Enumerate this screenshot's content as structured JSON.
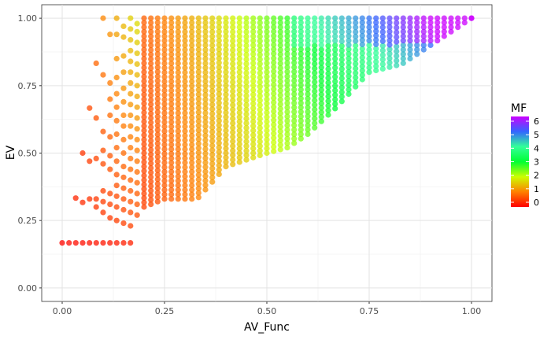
{
  "chart_data": {
    "type": "scatter",
    "title": "",
    "xlabel": "AV_Func",
    "ylabel": "EV",
    "xlim": [
      -0.05,
      1.05
    ],
    "ylim": [
      -0.05,
      1.05
    ],
    "grid": true,
    "xticks": [
      "0.00",
      "0.25",
      "0.50",
      "0.75",
      "1.00"
    ],
    "yticks": [
      "0.00",
      "0.25",
      "0.50",
      "0.75",
      "1.00"
    ],
    "legend": {
      "title": "MF",
      "position": "right",
      "type": "colorbar",
      "min": 0,
      "max": 6,
      "ticks": [
        "0",
        "1",
        "2",
        "3",
        "4",
        "5",
        "6"
      ],
      "colors": [
        "#ff0000",
        "#ff8000",
        "#ccff00",
        "#00ff33",
        "#33ff99",
        "#3366ff",
        "#cc00ff"
      ]
    },
    "point_cloud": {
      "description_rule": "For x = i/60 (i = 0..60), points spread in EV between a lower boundary and 1.0; color maps to MF",
      "x_values": "0..1 step 1/60",
      "lower_envelope": [
        [
          0.0,
          0.167
        ],
        [
          0.05,
          0.167
        ],
        [
          0.1,
          0.167
        ],
        [
          0.15,
          0.167
        ],
        [
          0.167,
          0.167
        ],
        [
          0.2,
          0.3
        ],
        [
          0.25,
          0.33
        ],
        [
          0.3,
          0.33
        ],
        [
          0.33,
          0.33
        ],
        [
          0.4,
          0.45
        ],
        [
          0.5,
          0.5
        ],
        [
          0.55,
          0.52
        ],
        [
          0.6,
          0.57
        ],
        [
          0.67,
          0.67
        ],
        [
          0.75,
          0.8
        ],
        [
          0.83,
          0.83
        ],
        [
          0.9,
          0.9
        ],
        [
          1.0,
          1.0
        ]
      ],
      "sparse_points": [
        [
          0.0,
          0.167
        ],
        [
          0.017,
          0.167
        ],
        [
          0.033,
          0.167
        ],
        [
          0.05,
          0.167
        ],
        [
          0.067,
          0.167
        ],
        [
          0.083,
          0.167
        ],
        [
          0.1,
          0.167
        ],
        [
          0.117,
          0.167
        ],
        [
          0.133,
          0.167
        ],
        [
          0.15,
          0.167
        ],
        [
          0.167,
          0.167
        ],
        [
          0.033,
          0.333
        ],
        [
          0.05,
          0.317
        ],
        [
          0.05,
          0.5
        ],
        [
          0.067,
          0.667
        ],
        [
          0.083,
          0.833
        ],
        [
          0.1,
          1.0
        ],
        [
          0.067,
          0.47
        ],
        [
          0.083,
          0.48
        ],
        [
          0.1,
          0.79
        ]
      ]
    }
  }
}
